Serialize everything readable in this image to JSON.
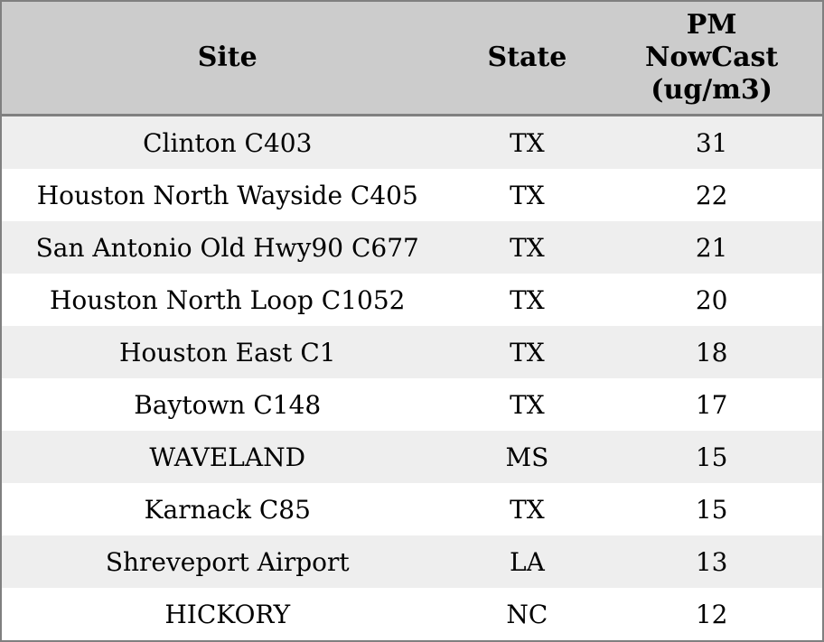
{
  "colors": {
    "header_bg": "#cccccc",
    "row_alt_bg": "#eeeeee",
    "row_bg": "#ffffff",
    "border": "#808080",
    "text": "#000000"
  },
  "table": {
    "columns": [
      {
        "label": "Site"
      },
      {
        "label": "State"
      },
      {
        "label": "PM NowCast (ug/m3)"
      }
    ],
    "rows": [
      {
        "site": "Clinton C403",
        "state": "TX",
        "pm": "31"
      },
      {
        "site": "Houston North Wayside C405",
        "state": "TX",
        "pm": "22"
      },
      {
        "site": "San Antonio Old Hwy90 C677",
        "state": "TX",
        "pm": "21"
      },
      {
        "site": "Houston North Loop C1052",
        "state": "TX",
        "pm": "20"
      },
      {
        "site": "Houston East C1",
        "state": "TX",
        "pm": "18"
      },
      {
        "site": "Baytown C148",
        "state": "TX",
        "pm": "17"
      },
      {
        "site": "WAVELAND",
        "state": "MS",
        "pm": "15"
      },
      {
        "site": "Karnack C85",
        "state": "TX",
        "pm": "15"
      },
      {
        "site": "Shreveport Airport",
        "state": "LA",
        "pm": "13"
      },
      {
        "site": "HICKORY",
        "state": "NC",
        "pm": "12"
      }
    ]
  },
  "chart_data": {
    "type": "table",
    "title": "",
    "columns": [
      "Site",
      "State",
      "PM NowCast (ug/m3)"
    ],
    "categories": [
      "Clinton C403",
      "Houston North Wayside C405",
      "San Antonio Old Hwy90 C677",
      "Houston North Loop C1052",
      "Houston East C1",
      "Baytown C148",
      "WAVELAND",
      "Karnack C85",
      "Shreveport Airport",
      "HICKORY"
    ],
    "states": [
      "TX",
      "TX",
      "TX",
      "TX",
      "TX",
      "TX",
      "MS",
      "TX",
      "LA",
      "NC"
    ],
    "values": [
      31,
      22,
      21,
      20,
      18,
      17,
      15,
      15,
      13,
      12
    ],
    "value_label": "PM NowCast (ug/m3)"
  }
}
